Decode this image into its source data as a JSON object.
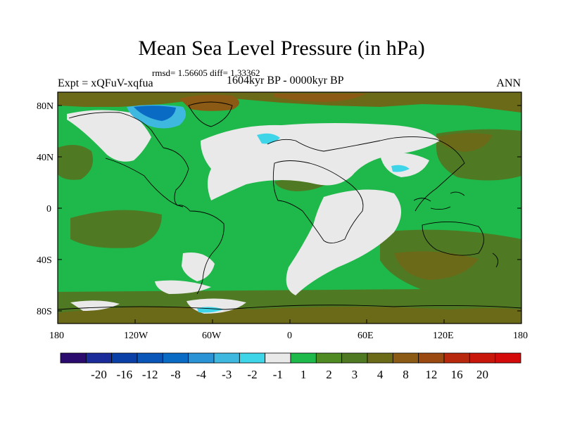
{
  "title": "Mean Sea Level Pressure (in hPa)",
  "stats": "rmsd= 1.56605 diff= 1.33362",
  "experiment": "Expt = xQFuV-xqfua",
  "period": "1604kyr BP - 0000kyr BP",
  "season": "ANN",
  "axes": {
    "lat_ticks": [
      "80N",
      "40N",
      "0",
      "40S",
      "80S"
    ],
    "lon_ticks": [
      "180",
      "120W",
      "60W",
      "0",
      "60E",
      "120E",
      "180"
    ]
  },
  "colors": {
    "ocean_base": "#1fb84a",
    "land_outline": "#000000",
    "neutral": "#e9e9e9",
    "olive": "#4f7a23",
    "dark_olive": "#6b6a18",
    "brown": "#8b5a14",
    "cyan": "#3fd5e8",
    "blue": "#0a6bc4"
  },
  "colorbar": {
    "colors": [
      "#2b0b6e",
      "#1a2b9a",
      "#0a3fa8",
      "#0a55b8",
      "#0a6bc4",
      "#2a93d6",
      "#3fb8e0",
      "#3fd5e8",
      "#e9e9e9",
      "#1fb84a",
      "#4f8a23",
      "#4f7a23",
      "#6b6a18",
      "#8b5a14",
      "#9a4a10",
      "#b8280c",
      "#c8160a",
      "#d40a0a"
    ],
    "labels": [
      "-20",
      "-16",
      "-12",
      "-8",
      "-4",
      "-3",
      "-2",
      "-1",
      "1",
      "2",
      "3",
      "4",
      "8",
      "12",
      "16",
      "20"
    ]
  }
}
